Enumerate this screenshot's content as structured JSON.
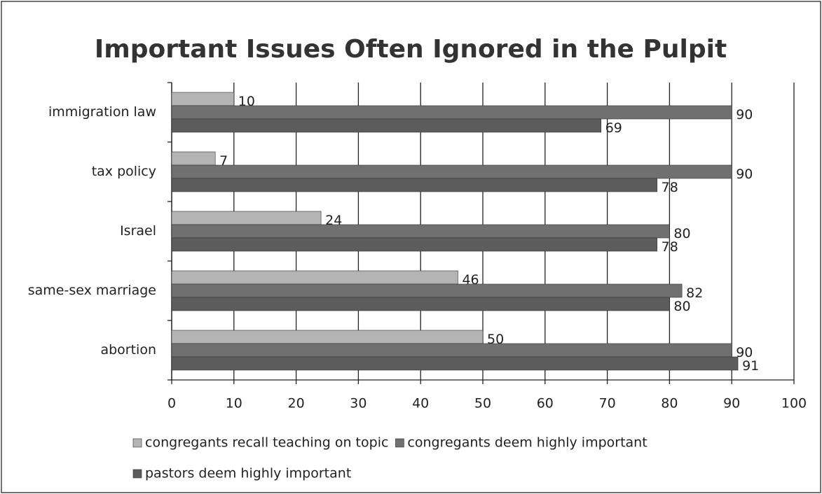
{
  "chart_data": {
    "type": "bar",
    "orientation": "horizontal",
    "title": "Important Issues Often Ignored in the Pulpit",
    "categories": [
      "immigration law",
      "tax policy",
      "Israel",
      "same-sex marriage",
      "abortion"
    ],
    "series": [
      {
        "name": "congregants recall teaching on topic",
        "color": "#b4b4b4",
        "values": [
          10,
          7,
          24,
          46,
          50
        ]
      },
      {
        "name": "congregants deem highly important",
        "color": "#707070",
        "values": [
          90,
          90,
          80,
          82,
          90
        ]
      },
      {
        "name": "pastors deem highly important",
        "color": "#5c5c5c",
        "values": [
          69,
          78,
          78,
          80,
          91
        ]
      }
    ],
    "xlim": [
      0,
      100
    ],
    "xticks": [
      0,
      10,
      20,
      30,
      40,
      50,
      60,
      70,
      80,
      90,
      100
    ],
    "grid": true
  }
}
